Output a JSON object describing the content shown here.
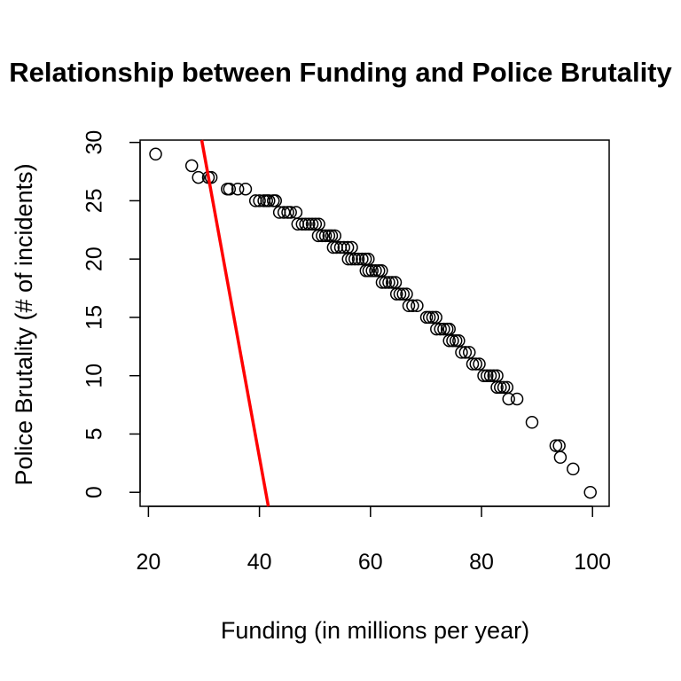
{
  "chart_data": {
    "type": "scatter",
    "title": "Relationship between Funding and Police Brutality",
    "xlabel": "Funding (in millions per year)",
    "ylabel": "Police Brutality (# of incidents)",
    "xlim": [
      18.5,
      103
    ],
    "ylim": [
      -1.2,
      30.2
    ],
    "xticks": [
      20,
      40,
      60,
      80,
      100
    ],
    "yticks": [
      0,
      5,
      10,
      15,
      20,
      25,
      30
    ],
    "grid": false,
    "point_style": "open-circle",
    "point_color": "#000000",
    "line_color": "#ff0000",
    "fit_line": {
      "x": [
        29.6,
        41.6
      ],
      "y": [
        30.2,
        -1.2
      ]
    },
    "points": [
      [
        21.3,
        29
      ],
      [
        27.8,
        28
      ],
      [
        29.0,
        27
      ],
      [
        30.8,
        27
      ],
      [
        31.3,
        27
      ],
      [
        34.2,
        26
      ],
      [
        34.6,
        26
      ],
      [
        36.1,
        26
      ],
      [
        37.5,
        26
      ],
      [
        39.3,
        25
      ],
      [
        40.0,
        25
      ],
      [
        40.8,
        25
      ],
      [
        41.3,
        25
      ],
      [
        41.7,
        25
      ],
      [
        42.5,
        25
      ],
      [
        42.9,
        25
      ],
      [
        43.6,
        24
      ],
      [
        44.4,
        24
      ],
      [
        45.1,
        24
      ],
      [
        45.6,
        24
      ],
      [
        46.6,
        24
      ],
      [
        46.9,
        23
      ],
      [
        47.7,
        23
      ],
      [
        48.3,
        23
      ],
      [
        48.9,
        23
      ],
      [
        49.5,
        23
      ],
      [
        50.1,
        23
      ],
      [
        50.7,
        23
      ],
      [
        50.6,
        22
      ],
      [
        51.3,
        22
      ],
      [
        51.9,
        22
      ],
      [
        52.5,
        22
      ],
      [
        53.0,
        22
      ],
      [
        53.6,
        22
      ],
      [
        53.3,
        21
      ],
      [
        53.9,
        21
      ],
      [
        54.6,
        21
      ],
      [
        55.2,
        21
      ],
      [
        55.9,
        21
      ],
      [
        56.6,
        21
      ],
      [
        56.0,
        20
      ],
      [
        56.6,
        20
      ],
      [
        57.2,
        20
      ],
      [
        57.8,
        20
      ],
      [
        58.5,
        20
      ],
      [
        59.1,
        20
      ],
      [
        59.6,
        20
      ],
      [
        59.2,
        19
      ],
      [
        59.7,
        19
      ],
      [
        60.3,
        19
      ],
      [
        60.9,
        19
      ],
      [
        61.5,
        19
      ],
      [
        62.0,
        19
      ],
      [
        62.1,
        18
      ],
      [
        62.7,
        18
      ],
      [
        63.3,
        18
      ],
      [
        63.9,
        18
      ],
      [
        64.5,
        18
      ],
      [
        64.7,
        17
      ],
      [
        65.3,
        17
      ],
      [
        65.9,
        17
      ],
      [
        66.5,
        17
      ],
      [
        66.9,
        16
      ],
      [
        67.6,
        16
      ],
      [
        68.4,
        16
      ],
      [
        70.1,
        15
      ],
      [
        70.6,
        15
      ],
      [
        71.2,
        15
      ],
      [
        71.8,
        15
      ],
      [
        71.9,
        14
      ],
      [
        72.6,
        14
      ],
      [
        73.2,
        14
      ],
      [
        73.8,
        14
      ],
      [
        74.2,
        14
      ],
      [
        74.2,
        13
      ],
      [
        74.8,
        13
      ],
      [
        75.4,
        13
      ],
      [
        75.9,
        13
      ],
      [
        76.4,
        12
      ],
      [
        77.1,
        12
      ],
      [
        77.8,
        12
      ],
      [
        78.4,
        11
      ],
      [
        79.0,
        11
      ],
      [
        79.6,
        11
      ],
      [
        80.4,
        10
      ],
      [
        81.0,
        10
      ],
      [
        81.6,
        10
      ],
      [
        82.2,
        10
      ],
      [
        82.8,
        10
      ],
      [
        82.8,
        9
      ],
      [
        83.4,
        9
      ],
      [
        84.0,
        9
      ],
      [
        84.6,
        9
      ],
      [
        84.9,
        8
      ],
      [
        86.4,
        8
      ],
      [
        89.1,
        6
      ],
      [
        93.4,
        4
      ],
      [
        94.0,
        4
      ],
      [
        94.2,
        3
      ],
      [
        96.5,
        2
      ],
      [
        99.6,
        0
      ]
    ]
  }
}
